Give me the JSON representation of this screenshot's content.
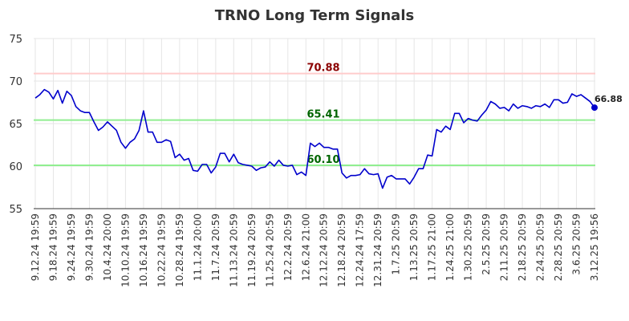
{
  "chart_data": {
    "type": "line",
    "title": "TRNO Long Term Signals",
    "xlabel": "",
    "ylabel": "",
    "ylim": [
      55,
      75
    ],
    "yticks": [
      "55",
      "60",
      "65",
      "70",
      "75"
    ],
    "grid": true,
    "x_tick_labels": [
      "9.12.24 19:59",
      "9.18.24 19:59",
      "9.24.24 19:59",
      "9.30.24 19:59",
      "10.4.24 20:00",
      "10.10.24 19:59",
      "10.16.24 19:59",
      "10.22.24 19:59",
      "10.28.24 19:59",
      "11.1.24 20:00",
      "11.7.24 20:59",
      "11.13.24 20:59",
      "11.19.24 20:59",
      "11.25.24 20:59",
      "12.2.24 20:59",
      "12.6.24 21:00",
      "12.12.24 20:59",
      "12.18.24 20:59",
      "12.24.24 17:59",
      "12.31.24 20:59",
      "1.7.25 20:59",
      "1.13.25 20:59",
      "1.17.25 21:00",
      "1.24.25 21:00",
      "1.30.25 20:59",
      "2.5.25 20:59",
      "2.11.25 20:59",
      "2.18.25 20:59",
      "2.24.25 20:59",
      "2.28.25 20:59",
      "3.6.25 20:59",
      "3.12.25 19:56"
    ],
    "series": [
      {
        "color": "#0000cc",
        "values": [
          68.0,
          68.4,
          69.0,
          68.7,
          67.9,
          68.9,
          67.4,
          68.8,
          68.3,
          67.0,
          66.5,
          66.3,
          66.3,
          65.2,
          64.2,
          64.6,
          65.2,
          64.7,
          64.2,
          62.8,
          62.1,
          62.8,
          63.2,
          64.2,
          66.5,
          64.0,
          64.0,
          62.8,
          62.8,
          63.1,
          62.9,
          61.0,
          61.4,
          60.7,
          60.9,
          59.5,
          59.4,
          60.2,
          60.2,
          59.2,
          59.9,
          61.5,
          61.5,
          60.5,
          61.4,
          60.4,
          60.2,
          60.1,
          60.0,
          59.5,
          59.8,
          59.9,
          60.5,
          60.0,
          60.7,
          60.1,
          60.0,
          60.1,
          59.0,
          59.3,
          58.9,
          62.7,
          62.3,
          62.7,
          62.2,
          62.2,
          62.0,
          62.0,
          59.2,
          58.6,
          58.9,
          58.9,
          59.0,
          59.7,
          59.1,
          59.0,
          59.1,
          57.4,
          58.7,
          58.9,
          58.5,
          58.5,
          58.5,
          57.9,
          58.7,
          59.7,
          59.7,
          61.3,
          61.2,
          64.3,
          64.0,
          64.7,
          64.3,
          66.2,
          66.2,
          65.1,
          65.6,
          65.4,
          65.3,
          66.0,
          66.6,
          67.6,
          67.3,
          66.8,
          66.9,
          66.5,
          67.3,
          66.8,
          67.1,
          67.0,
          66.8,
          67.1,
          67.0,
          67.3,
          66.9,
          67.8,
          67.8,
          67.4,
          67.5,
          68.5,
          68.2,
          68.4,
          68.0,
          67.6,
          66.88
        ]
      }
    ],
    "signal_lines": [
      {
        "value": 70.88,
        "label": "70.88",
        "line_color": "#ffcccc",
        "text_color": "#8b0000"
      },
      {
        "value": 65.41,
        "label": "65.41",
        "line_color": "#90ee90",
        "text_color": "#006400"
      },
      {
        "value": 60.1,
        "label": "60.10",
        "line_color": "#90ee90",
        "text_color": "#006400"
      }
    ],
    "last_value_label": "66.88"
  }
}
